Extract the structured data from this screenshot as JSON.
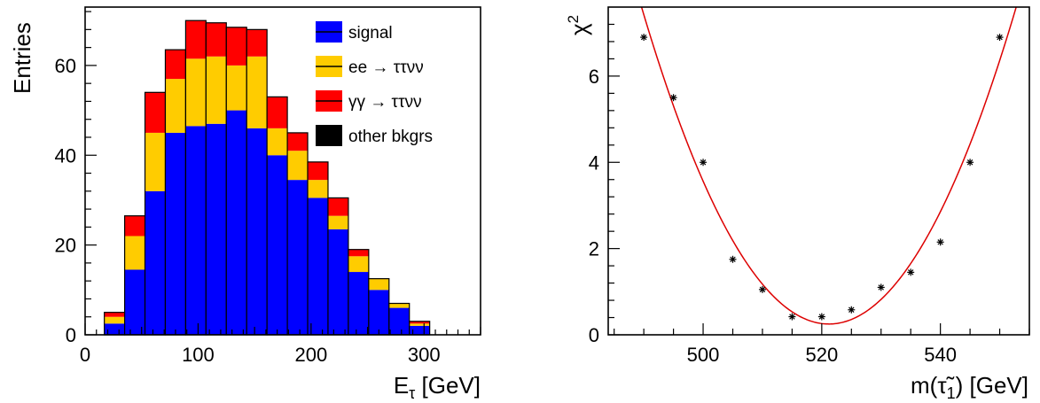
{
  "chart_data": [
    {
      "type": "bar",
      "subtype": "stacked-histogram",
      "xlabel": "E",
      "xlabel_sub": "τ",
      "xlabel_unit": " [GeV]",
      "ylabel": "Entries",
      "xlim": [
        0,
        350
      ],
      "ylim": [
        0,
        73
      ],
      "xticks": [
        0,
        100,
        200,
        300
      ],
      "yticks": [
        0,
        20,
        40,
        60
      ],
      "bin_edges": [
        17,
        35,
        53,
        71,
        89,
        107,
        125,
        143,
        161,
        179,
        197,
        215,
        233,
        251,
        269,
        287,
        305
      ],
      "series": [
        {
          "name": "signal",
          "color": "#0000ff",
          "values": [
            2.5,
            14.5,
            32,
            45,
            46.5,
            47,
            50,
            46,
            40,
            34.5,
            30.5,
            23.5,
            14,
            10,
            6,
            2,
            0.3
          ]
        },
        {
          "name": "ee → ττνν",
          "color": "#ffcc00",
          "values": [
            1.5,
            7.5,
            13,
            12,
            15,
            15,
            10,
            16,
            6,
            6.5,
            4,
            3,
            3.5,
            2.5,
            1,
            0.5,
            0
          ]
        },
        {
          "name": "γγ → ττνν",
          "color": "#ff0000",
          "values": [
            1.0,
            4.5,
            9,
            6.5,
            8.5,
            7.5,
            8.5,
            6,
            7,
            4,
            4,
            4,
            1.5,
            0,
            0,
            0.5,
            0
          ]
        },
        {
          "name": "other bkgrs",
          "color": "#000000",
          "values": [
            0,
            0,
            0,
            0,
            0,
            0,
            0,
            0,
            0,
            0,
            0,
            0,
            0,
            0,
            0,
            0,
            0
          ]
        }
      ]
    },
    {
      "type": "scatter",
      "subtype": "points-with-fit",
      "xlabel": "m(",
      "xlabel_symbol": "τ̃",
      "xlabel_sub": "1",
      "xlabel_unit": ") [GeV]",
      "ylabel": "χ",
      "ylabel_sup": "2",
      "xlim": [
        484,
        555
      ],
      "ylim": [
        0,
        7.6
      ],
      "xticks": [
        500,
        520,
        540
      ],
      "yticks": [
        0,
        2,
        4,
        6
      ],
      "points": [
        {
          "x": 490,
          "y": 6.9
        },
        {
          "x": 495,
          "y": 5.5
        },
        {
          "x": 500,
          "y": 4.0
        },
        {
          "x": 505,
          "y": 1.75
        },
        {
          "x": 510,
          "y": 1.05
        },
        {
          "x": 515,
          "y": 0.42
        },
        {
          "x": 520,
          "y": 0.42
        },
        {
          "x": 525,
          "y": 0.58
        },
        {
          "x": 530,
          "y": 1.1
        },
        {
          "x": 535,
          "y": 1.45
        },
        {
          "x": 540,
          "y": 2.15
        },
        {
          "x": 545,
          "y": 4.0
        },
        {
          "x": 550,
          "y": 6.9
        }
      ],
      "fit": {
        "type": "parabola",
        "x_min": 521.2,
        "y_min": 0.25,
        "curvature": 0.00737
      },
      "fit_color": "#dd0000"
    }
  ]
}
